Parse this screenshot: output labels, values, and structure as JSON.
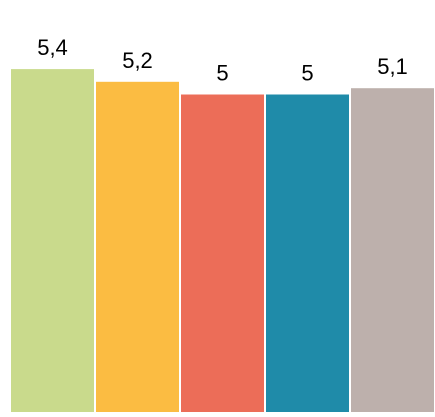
{
  "chart_data": {
    "type": "bar",
    "categories": [
      "",
      "",
      "",
      "",
      ""
    ],
    "values": [
      5.4,
      5.2,
      5.0,
      5.0,
      5.1
    ],
    "data_labels": [
      "5,4",
      "5,2",
      "5",
      "5",
      "5,1"
    ],
    "colors": [
      "#C9DA8C",
      "#FBBC42",
      "#EC6D58",
      "#1F8BA9",
      "#BDB0AC"
    ],
    "title": "",
    "xlabel": "",
    "ylabel": "",
    "ylim": [
      0,
      6.3
    ],
    "grid": false,
    "legend": "none"
  }
}
